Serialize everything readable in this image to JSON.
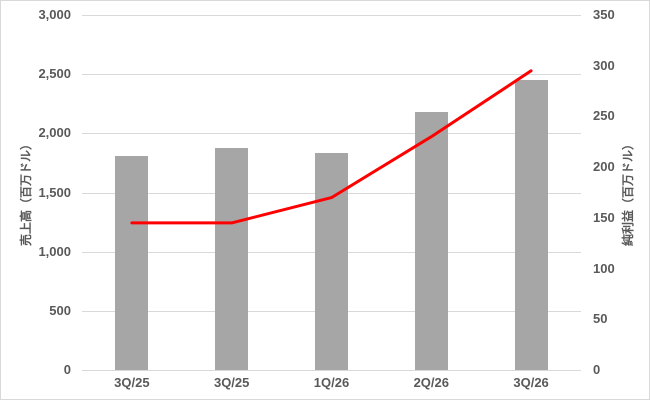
{
  "chart_data": {
    "type": "combo_bar_line",
    "title": "",
    "categories": [
      "3Q/25",
      "3Q/25",
      "1Q/26",
      "2Q/26",
      "3Q/26"
    ],
    "series": [
      {
        "name": "売上高",
        "chart_type": "bar",
        "axis": "left",
        "color": "#a6a6a6",
        "values": [
          1810,
          1875,
          1835,
          2180,
          2450
        ]
      },
      {
        "name": "純利益",
        "chart_type": "line",
        "axis": "right",
        "color": "#ff0000",
        "values": [
          145,
          145,
          170,
          230,
          295
        ]
      }
    ],
    "left_axis": {
      "title": "売上高（百万ドル）",
      "min": 0,
      "max": 3000,
      "step": 500,
      "tick_labels": [
        "0",
        "500",
        "1,000",
        "1,500",
        "2,000",
        "2,500",
        "3,000"
      ]
    },
    "right_axis": {
      "title": "純利益（百万ドル）",
      "min": 0,
      "max": 350,
      "step": 50,
      "tick_labels": [
        "0",
        "50",
        "100",
        "150",
        "200",
        "250",
        "300",
        "350"
      ]
    },
    "grid": true,
    "legend": "none",
    "styles": {
      "text_color": "#595959",
      "grid_color": "#d9d9d9",
      "axis_line_color": "#d9d9d9",
      "background": "#ffffff",
      "border_color": "#d9d9d9",
      "bar_color": "#a6a6a6",
      "line_color": "#ff0000"
    }
  }
}
